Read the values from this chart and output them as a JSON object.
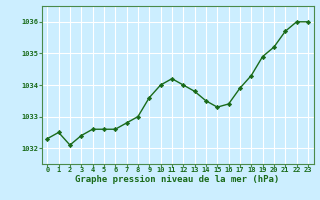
{
  "x": [
    0,
    1,
    2,
    3,
    4,
    5,
    6,
    7,
    8,
    9,
    10,
    11,
    12,
    13,
    14,
    15,
    16,
    17,
    18,
    19,
    20,
    21,
    22,
    23
  ],
  "y": [
    1032.3,
    1032.5,
    1032.1,
    1032.4,
    1032.6,
    1032.6,
    1032.6,
    1032.8,
    1033.0,
    1033.6,
    1034.0,
    1034.2,
    1034.0,
    1033.8,
    1033.5,
    1033.3,
    1033.4,
    1033.9,
    1034.3,
    1034.9,
    1035.2,
    1035.7,
    1036.0,
    1036.0
  ],
  "line_color": "#1a6b1a",
  "marker": "D",
  "marker_size": 2.2,
  "bg_color": "#cceeff",
  "grid_color": "#ffffff",
  "xlabel": "Graphe pression niveau de la mer (hPa)",
  "xlabel_color": "#1a6b1a",
  "tick_color": "#1a6b1a",
  "spine_color": "#4a8a4a",
  "ylim": [
    1031.5,
    1036.5
  ],
  "yticks": [
    1032,
    1033,
    1034,
    1035,
    1036
  ],
  "xlim": [
    -0.5,
    23.5
  ],
  "xticks": [
    0,
    1,
    2,
    3,
    4,
    5,
    6,
    7,
    8,
    9,
    10,
    11,
    12,
    13,
    14,
    15,
    16,
    17,
    18,
    19,
    20,
    21,
    22,
    23
  ],
  "xtick_labels": [
    "0",
    "1",
    "2",
    "3",
    "4",
    "5",
    "6",
    "7",
    "8",
    "9",
    "10",
    "11",
    "12",
    "13",
    "14",
    "15",
    "16",
    "17",
    "18",
    "19",
    "20",
    "21",
    "22",
    "23"
  ],
  "line_width": 1.0,
  "tick_fontsize": 5.0,
  "ylabel_fontsize": 6.0,
  "xlabel_fontsize": 6.5
}
